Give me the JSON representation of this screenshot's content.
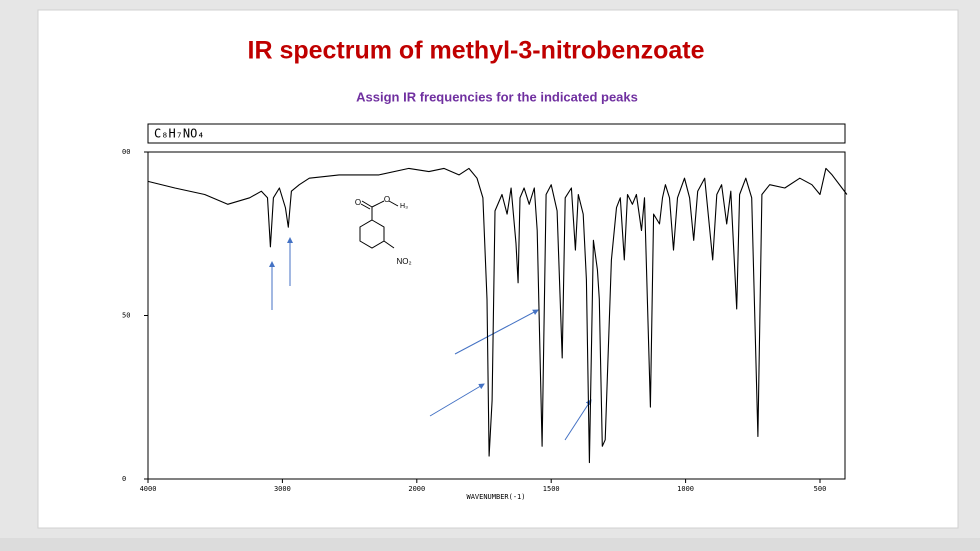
{
  "chart_data": {
    "type": "line",
    "title": "IR spectrum of methyl-3-nitrobenzoate",
    "subtitle": "Assign IR frequencies for the indicated peaks",
    "formula": "C₈H₇NO₄",
    "x_label": "WAVENUMBER(-1)",
    "structure_labels": [
      "O",
      "O",
      "H₃",
      "NO₂"
    ],
    "color": "#000000",
    "xlim": [
      4000,
      400
    ],
    "ylim": [
      0,
      100
    ],
    "xticks": [
      4000,
      3000,
      2000,
      1500,
      1000,
      500
    ],
    "yticks": [
      0,
      50,
      {
        "value": 100,
        "label": "00"
      }
    ],
    "x": [
      4000,
      3800,
      3578,
      3407,
      3244,
      3156,
      3111,
      3089,
      3067,
      3022,
      2978,
      2956,
      2933,
      2874,
      2800,
      2578,
      2281,
      2059,
      1955,
      1899,
      1843,
      1806,
      1776,
      1754,
      1739,
      1731,
      1720,
      1709,
      1683,
      1664,
      1649,
      1631,
      1623,
      1616,
      1601,
      1582,
      1563,
      1552,
      1534,
      1519,
      1500,
      1478,
      1459,
      1448,
      1425,
      1410,
      1399,
      1381,
      1369,
      1358,
      1343,
      1328,
      1321,
      1310,
      1299,
      1276,
      1257,
      1243,
      1228,
      1216,
      1198,
      1183,
      1164,
      1153,
      1131,
      1119,
      1097,
      1086,
      1075,
      1060,
      1045,
      1030,
      1004,
      985,
      970,
      955,
      929,
      899,
      884,
      866,
      847,
      832,
      810,
      799,
      776,
      754,
      731,
      716,
      687,
      631,
      575,
      530,
      500,
      478,
      455,
      400
    ],
    "values": [
      91,
      89,
      87,
      84,
      86,
      88,
      86,
      71,
      86,
      89,
      83,
      77,
      88,
      90,
      92,
      93,
      93,
      95,
      94,
      95,
      93,
      95,
      92,
      86,
      55,
      7,
      24,
      82,
      87,
      81,
      89,
      72,
      60,
      86,
      89,
      84,
      89,
      76,
      10,
      87,
      90,
      82,
      37,
      86,
      89,
      70,
      87,
      81,
      61,
      5,
      73,
      64,
      55,
      10,
      12,
      67,
      83,
      86,
      67,
      87,
      84,
      87,
      76,
      86,
      22,
      81,
      78,
      86,
      90,
      86,
      70,
      86,
      92,
      86,
      73,
      88,
      92,
      67,
      87,
      90,
      78,
      88,
      52,
      87,
      92,
      86,
      13,
      87,
      90,
      89,
      92,
      90,
      87,
      95,
      93,
      87
    ]
  }
}
